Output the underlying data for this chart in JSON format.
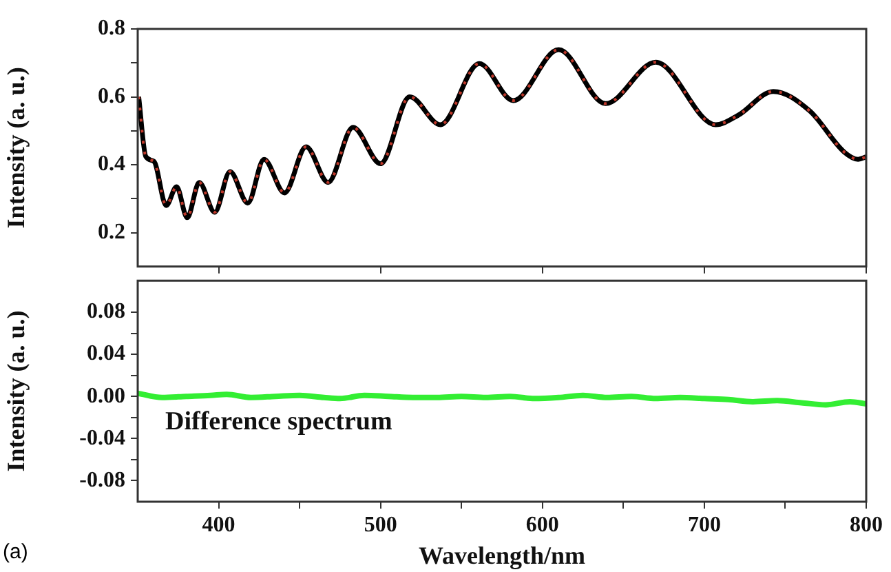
{
  "chart_data": [
    {
      "type": "line",
      "ylabel": "Intensity (a. u.)",
      "xlim": [
        350,
        800
      ],
      "ylim": [
        0.1,
        0.8
      ],
      "xticks": [
        400,
        500,
        600,
        700,
        800
      ],
      "yticks": [
        0.2,
        {
          "value": 0.3,
          "label": null
        },
        0.4,
        {
          "value": 0.5,
          "label": null
        },
        0.6,
        {
          "value": 0.7,
          "label": null
        },
        0.8
      ],
      "tick_labels": "y",
      "marker": "none",
      "series": [
        {
          "color": "#000000",
          "line_style": "solid",
          "x": [
            350.6,
            355,
            360,
            367.6,
            374,
            380.6,
            388,
            397.6,
            407,
            418,
            428,
            440.7,
            454,
            467.6,
            483,
            500,
            518,
            537,
            561,
            582,
            610,
            639,
            670,
            707,
            721,
            742.6,
            765,
            786.5,
            795,
            800
          ],
          "values": [
            0.6,
            0.424,
            0.41,
            0.28,
            0.335,
            0.244,
            0.348,
            0.26,
            0.38,
            0.287,
            0.416,
            0.317,
            0.453,
            0.348,
            0.51,
            0.403,
            0.6,
            0.518,
            0.698,
            0.589,
            0.739,
            0.58,
            0.702,
            0.518,
            0.546,
            0.616,
            0.559,
            0.437,
            0.416,
            0.423
          ]
        },
        {
          "color": "#c0392b",
          "line_style": "dotted",
          "x": [
            350.6,
            355,
            360,
            367.6,
            374,
            380.6,
            388,
            397.6,
            407,
            418,
            428,
            440.7,
            454,
            467.6,
            483,
            500,
            518,
            537,
            561,
            582,
            610,
            639,
            670,
            707,
            721,
            742.6,
            765,
            786.5,
            795,
            800
          ],
          "values": [
            0.6,
            0.424,
            0.41,
            0.28,
            0.335,
            0.244,
            0.348,
            0.26,
            0.38,
            0.287,
            0.416,
            0.317,
            0.453,
            0.348,
            0.51,
            0.403,
            0.6,
            0.518,
            0.698,
            0.589,
            0.739,
            0.58,
            0.702,
            0.518,
            0.546,
            0.616,
            0.559,
            0.437,
            0.416,
            0.423
          ]
        }
      ]
    },
    {
      "type": "line",
      "xlabel": "Wavelength/nm",
      "ylabel": "Intensity (a. u.)",
      "xlim": [
        350,
        800
      ],
      "ylim": [
        -0.1,
        0.11
      ],
      "xticks": [
        400,
        {
          "value": 450,
          "label": null
        },
        500,
        {
          "value": 550,
          "label": null
        },
        600,
        {
          "value": 650,
          "label": null
        },
        700,
        {
          "value": 750,
          "label": null
        },
        800
      ],
      "yticks": [
        {
          "value": -0.08,
          "label": "-0.08"
        },
        {
          "value": -0.06,
          "label": null
        },
        {
          "value": -0.04,
          "label": "-0.04"
        },
        {
          "value": -0.02,
          "label": null
        },
        {
          "value": 0,
          "label": "0.00"
        },
        {
          "value": 0.02,
          "label": null
        },
        {
          "value": 0.04,
          "label": "0.04"
        },
        {
          "value": 0.06,
          "label": null
        },
        {
          "value": 0.08,
          "label": "0.08"
        }
      ],
      "marker": "none",
      "annotations": [
        "(a)"
      ],
      "series": [
        {
          "name": "Difference spectrum",
          "color": "#33ee33",
          "line_style": "solid",
          "x": [
            350,
            365,
            380,
            395,
            405,
            420,
            435,
            450,
            465,
            475,
            490,
            505,
            520,
            535,
            550,
            565,
            580,
            595,
            610,
            625,
            640,
            655,
            670,
            685,
            700,
            715,
            730,
            745,
            760,
            775,
            790,
            800
          ],
          "values": [
            0.003,
            -0.001,
            0.0,
            0.001,
            0.002,
            -0.001,
            0.0,
            0.001,
            -0.001,
            -0.002,
            0.001,
            0.0,
            -0.001,
            -0.001,
            0.0,
            -0.001,
            0.0,
            -0.002,
            -0.001,
            0.001,
            -0.001,
            0.0,
            -0.002,
            -0.001,
            -0.002,
            -0.003,
            -0.005,
            -0.004,
            -0.006,
            -0.008,
            -0.005,
            -0.007
          ]
        }
      ]
    }
  ]
}
